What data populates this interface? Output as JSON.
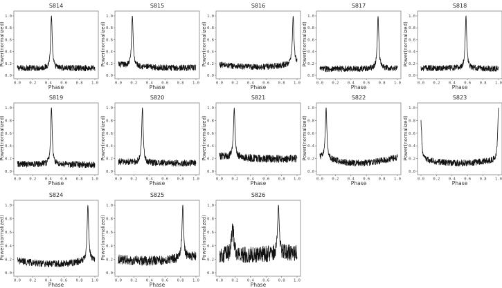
{
  "figure": {
    "layout": {
      "rows": 3,
      "cols": 5,
      "panel_count": 13
    }
  },
  "chart_data": [
    {
      "type": "line",
      "title": "S814",
      "xlabel": "Phase",
      "ylabel": "Power(normalized)",
      "xlim": [
        0,
        1
      ],
      "ylim": [
        0,
        1
      ],
      "xticks": [
        "0.0",
        "0.2",
        "0.4",
        "0.6",
        "0.8",
        "1.0"
      ],
      "yticks": [
        "0.0",
        "0.2",
        "0.4",
        "0.6",
        "0.8",
        "1.0"
      ],
      "peak_phase": 0.44,
      "peak_power": 1.0,
      "baseline": 0.12,
      "noise": 0.05,
      "left_level": 0.12,
      "right_level": 0.12,
      "color": "#111111"
    },
    {
      "type": "line",
      "title": "S815",
      "xlabel": "Phase",
      "ylabel": "Power(normalized)",
      "xlim": [
        0,
        1
      ],
      "ylim": [
        0,
        1
      ],
      "xticks": [
        "0.0",
        "0.2",
        "0.4",
        "0.6",
        "0.8",
        "1.0"
      ],
      "yticks": [
        "0.0",
        "0.2",
        "0.4",
        "0.6",
        "0.8",
        "1.0"
      ],
      "peak_phase": 0.18,
      "peak_power": 1.0,
      "baseline": 0.13,
      "noise": 0.05,
      "left_level": 0.18,
      "right_level": 0.13,
      "color": "#111111"
    },
    {
      "type": "line",
      "title": "S816",
      "xlabel": "Phase",
      "ylabel": "Power(normalized)",
      "xlim": [
        0,
        1
      ],
      "ylim": [
        0,
        1
      ],
      "xticks": [
        "0.0",
        "0.2",
        "0.4",
        "0.6",
        "0.8",
        "1.0"
      ],
      "yticks": [
        "0.0",
        "0.2",
        "0.4",
        "0.6",
        "0.8",
        "1.0"
      ],
      "peak_phase": 0.95,
      "peak_power": 1.0,
      "baseline": 0.14,
      "noise": 0.05,
      "left_level": 0.18,
      "right_level": 0.2,
      "color": "#111111"
    },
    {
      "type": "line",
      "title": "S817",
      "xlabel": "Phase",
      "ylabel": "Power(normalized)",
      "xlim": [
        0,
        1
      ],
      "ylim": [
        0,
        1
      ],
      "xticks": [
        "0.0",
        "0.2",
        "0.4",
        "0.6",
        "0.8",
        "1.0"
      ],
      "yticks": [
        "0.0",
        "0.2",
        "0.4",
        "0.6",
        "0.8",
        "1.0"
      ],
      "peak_phase": 0.75,
      "peak_power": 1.0,
      "baseline": 0.11,
      "noise": 0.05,
      "left_level": 0.11,
      "right_level": 0.12,
      "color": "#111111"
    },
    {
      "type": "line",
      "title": "S818",
      "xlabel": "Phase",
      "ylabel": "Power(normalized)",
      "xlim": [
        0,
        1
      ],
      "ylim": [
        0,
        1
      ],
      "xticks": [
        "0.0",
        "0.2",
        "0.4",
        "0.6",
        "0.8",
        "1.0"
      ],
      "yticks": [
        "0.0",
        "0.2",
        "0.4",
        "0.6",
        "0.8",
        "1.0"
      ],
      "peak_phase": 0.58,
      "peak_power": 1.0,
      "baseline": 0.12,
      "noise": 0.05,
      "left_level": 0.12,
      "right_level": 0.11,
      "color": "#111111"
    },
    {
      "type": "line",
      "title": "S819",
      "xlabel": "Phase",
      "ylabel": "Power(normalized)",
      "xlim": [
        0,
        1
      ],
      "ylim": [
        0,
        1
      ],
      "xticks": [
        "0.0",
        "0.2",
        "0.4",
        "0.6",
        "0.8",
        "1.0"
      ],
      "yticks": [
        "0.0",
        "0.2",
        "0.4",
        "0.6",
        "0.8",
        "1.0"
      ],
      "peak_phase": 0.44,
      "peak_power": 1.0,
      "baseline": 0.11,
      "noise": 0.05,
      "left_level": 0.11,
      "right_level": 0.1,
      "color": "#111111"
    },
    {
      "type": "line",
      "title": "S820",
      "xlabel": "Phase",
      "ylabel": "Power(normalized)",
      "xlim": [
        0,
        1
      ],
      "ylim": [
        0,
        1
      ],
      "xticks": [
        "0.0",
        "0.2",
        "0.4",
        "0.6",
        "0.8",
        "1.0"
      ],
      "yticks": [
        "0.0",
        "0.2",
        "0.4",
        "0.6",
        "0.8",
        "1.0"
      ],
      "peak_phase": 0.31,
      "peak_power": 1.0,
      "baseline": 0.13,
      "noise": 0.05,
      "left_level": 0.15,
      "right_level": 0.13,
      "color": "#111111"
    },
    {
      "type": "line",
      "title": "S821",
      "xlabel": "Phase",
      "ylabel": "Power(normalized)",
      "xlim": [
        0,
        1
      ],
      "ylim": [
        0,
        1
      ],
      "xticks": [
        "0.0",
        "0.2",
        "0.4",
        "0.6",
        "0.8",
        "1.0"
      ],
      "yticks": [
        "0.0",
        "0.2",
        "0.4",
        "0.6",
        "0.8",
        "1.0"
      ],
      "peak_phase": 0.19,
      "peak_power": 1.0,
      "baseline": 0.2,
      "noise": 0.06,
      "left_level": 0.24,
      "right_level": 0.2,
      "color": "#111111"
    },
    {
      "type": "line",
      "title": "S822",
      "xlabel": "Phase",
      "ylabel": "Power(normalized)",
      "xlim": [
        0,
        1
      ],
      "ylim": [
        0,
        1
      ],
      "xticks": [
        "0.0",
        "0.2",
        "0.4",
        "0.6",
        "0.8",
        "1.0"
      ],
      "yticks": [
        "0.0",
        "0.2",
        "0.4",
        "0.6",
        "0.8",
        "1.0"
      ],
      "peak_phase": 0.08,
      "peak_power": 1.0,
      "baseline": 0.13,
      "noise": 0.05,
      "left_level": 0.22,
      "right_level": 0.22,
      "color": "#111111"
    },
    {
      "type": "line",
      "title": "S823",
      "xlabel": "Phase",
      "ylabel": "Power(normalized)",
      "xlim": [
        0,
        1
      ],
      "ylim": [
        0,
        1
      ],
      "xticks": [
        "0.0",
        "0.2",
        "0.4",
        "0.6",
        "0.8",
        "1.0"
      ],
      "yticks": [
        "0.0",
        "0.2",
        "0.4",
        "0.6",
        "0.8",
        "1.0"
      ],
      "peak_phase": 1.0,
      "peak_power": 1.0,
      "edge_peak_left": 0.76,
      "baseline": 0.13,
      "noise": 0.05,
      "left_level": 0.18,
      "right_level": 0.18,
      "color": "#111111"
    },
    {
      "type": "line",
      "title": "S824",
      "xlabel": "Phase",
      "ylabel": "Power(normalized)",
      "xlim": [
        0,
        1
      ],
      "ylim": [
        0,
        1
      ],
      "xticks": [
        "0.0",
        "0.2",
        "0.4",
        "0.6",
        "0.8",
        "1.0"
      ],
      "yticks": [
        "0.0",
        "0.2",
        "0.4",
        "0.6",
        "0.8",
        "1.0"
      ],
      "peak_phase": 0.91,
      "peak_power": 1.0,
      "baseline": 0.13,
      "noise": 0.05,
      "left_level": 0.18,
      "right_level": 0.2,
      "color": "#111111"
    },
    {
      "type": "line",
      "title": "S825",
      "xlabel": "Phase",
      "ylabel": "Power(normalized)",
      "xlim": [
        0,
        1
      ],
      "ylim": [
        0,
        1
      ],
      "xticks": [
        "0.0",
        "0.2",
        "0.4",
        "0.6",
        "0.8",
        "1.0"
      ],
      "yticks": [
        "0.0",
        "0.2",
        "0.4",
        "0.6",
        "0.8",
        "1.0"
      ],
      "peak_phase": 0.83,
      "peak_power": 1.0,
      "baseline": 0.18,
      "noise": 0.07,
      "left_level": 0.2,
      "right_level": 0.25,
      "color": "#111111"
    },
    {
      "type": "line",
      "title": "S826",
      "xlabel": "Phase",
      "ylabel": "Power(normalized)",
      "xlim": [
        0,
        1
      ],
      "ylim": [
        0,
        1
      ],
      "xticks": [
        "0.0",
        "0.2",
        "0.4",
        "0.6",
        "0.8",
        "1.0"
      ],
      "yticks": [
        "0.0",
        "0.2",
        "0.4",
        "0.6",
        "0.8",
        "1.0"
      ],
      "peak_phase": 0.76,
      "peak_power": 1.0,
      "secondary_peak_phase": 0.17,
      "secondary_peak_power": 0.65,
      "baseline": 0.27,
      "noise": 0.12,
      "left_level": 0.25,
      "right_level": 0.3,
      "color": "#111111"
    }
  ]
}
